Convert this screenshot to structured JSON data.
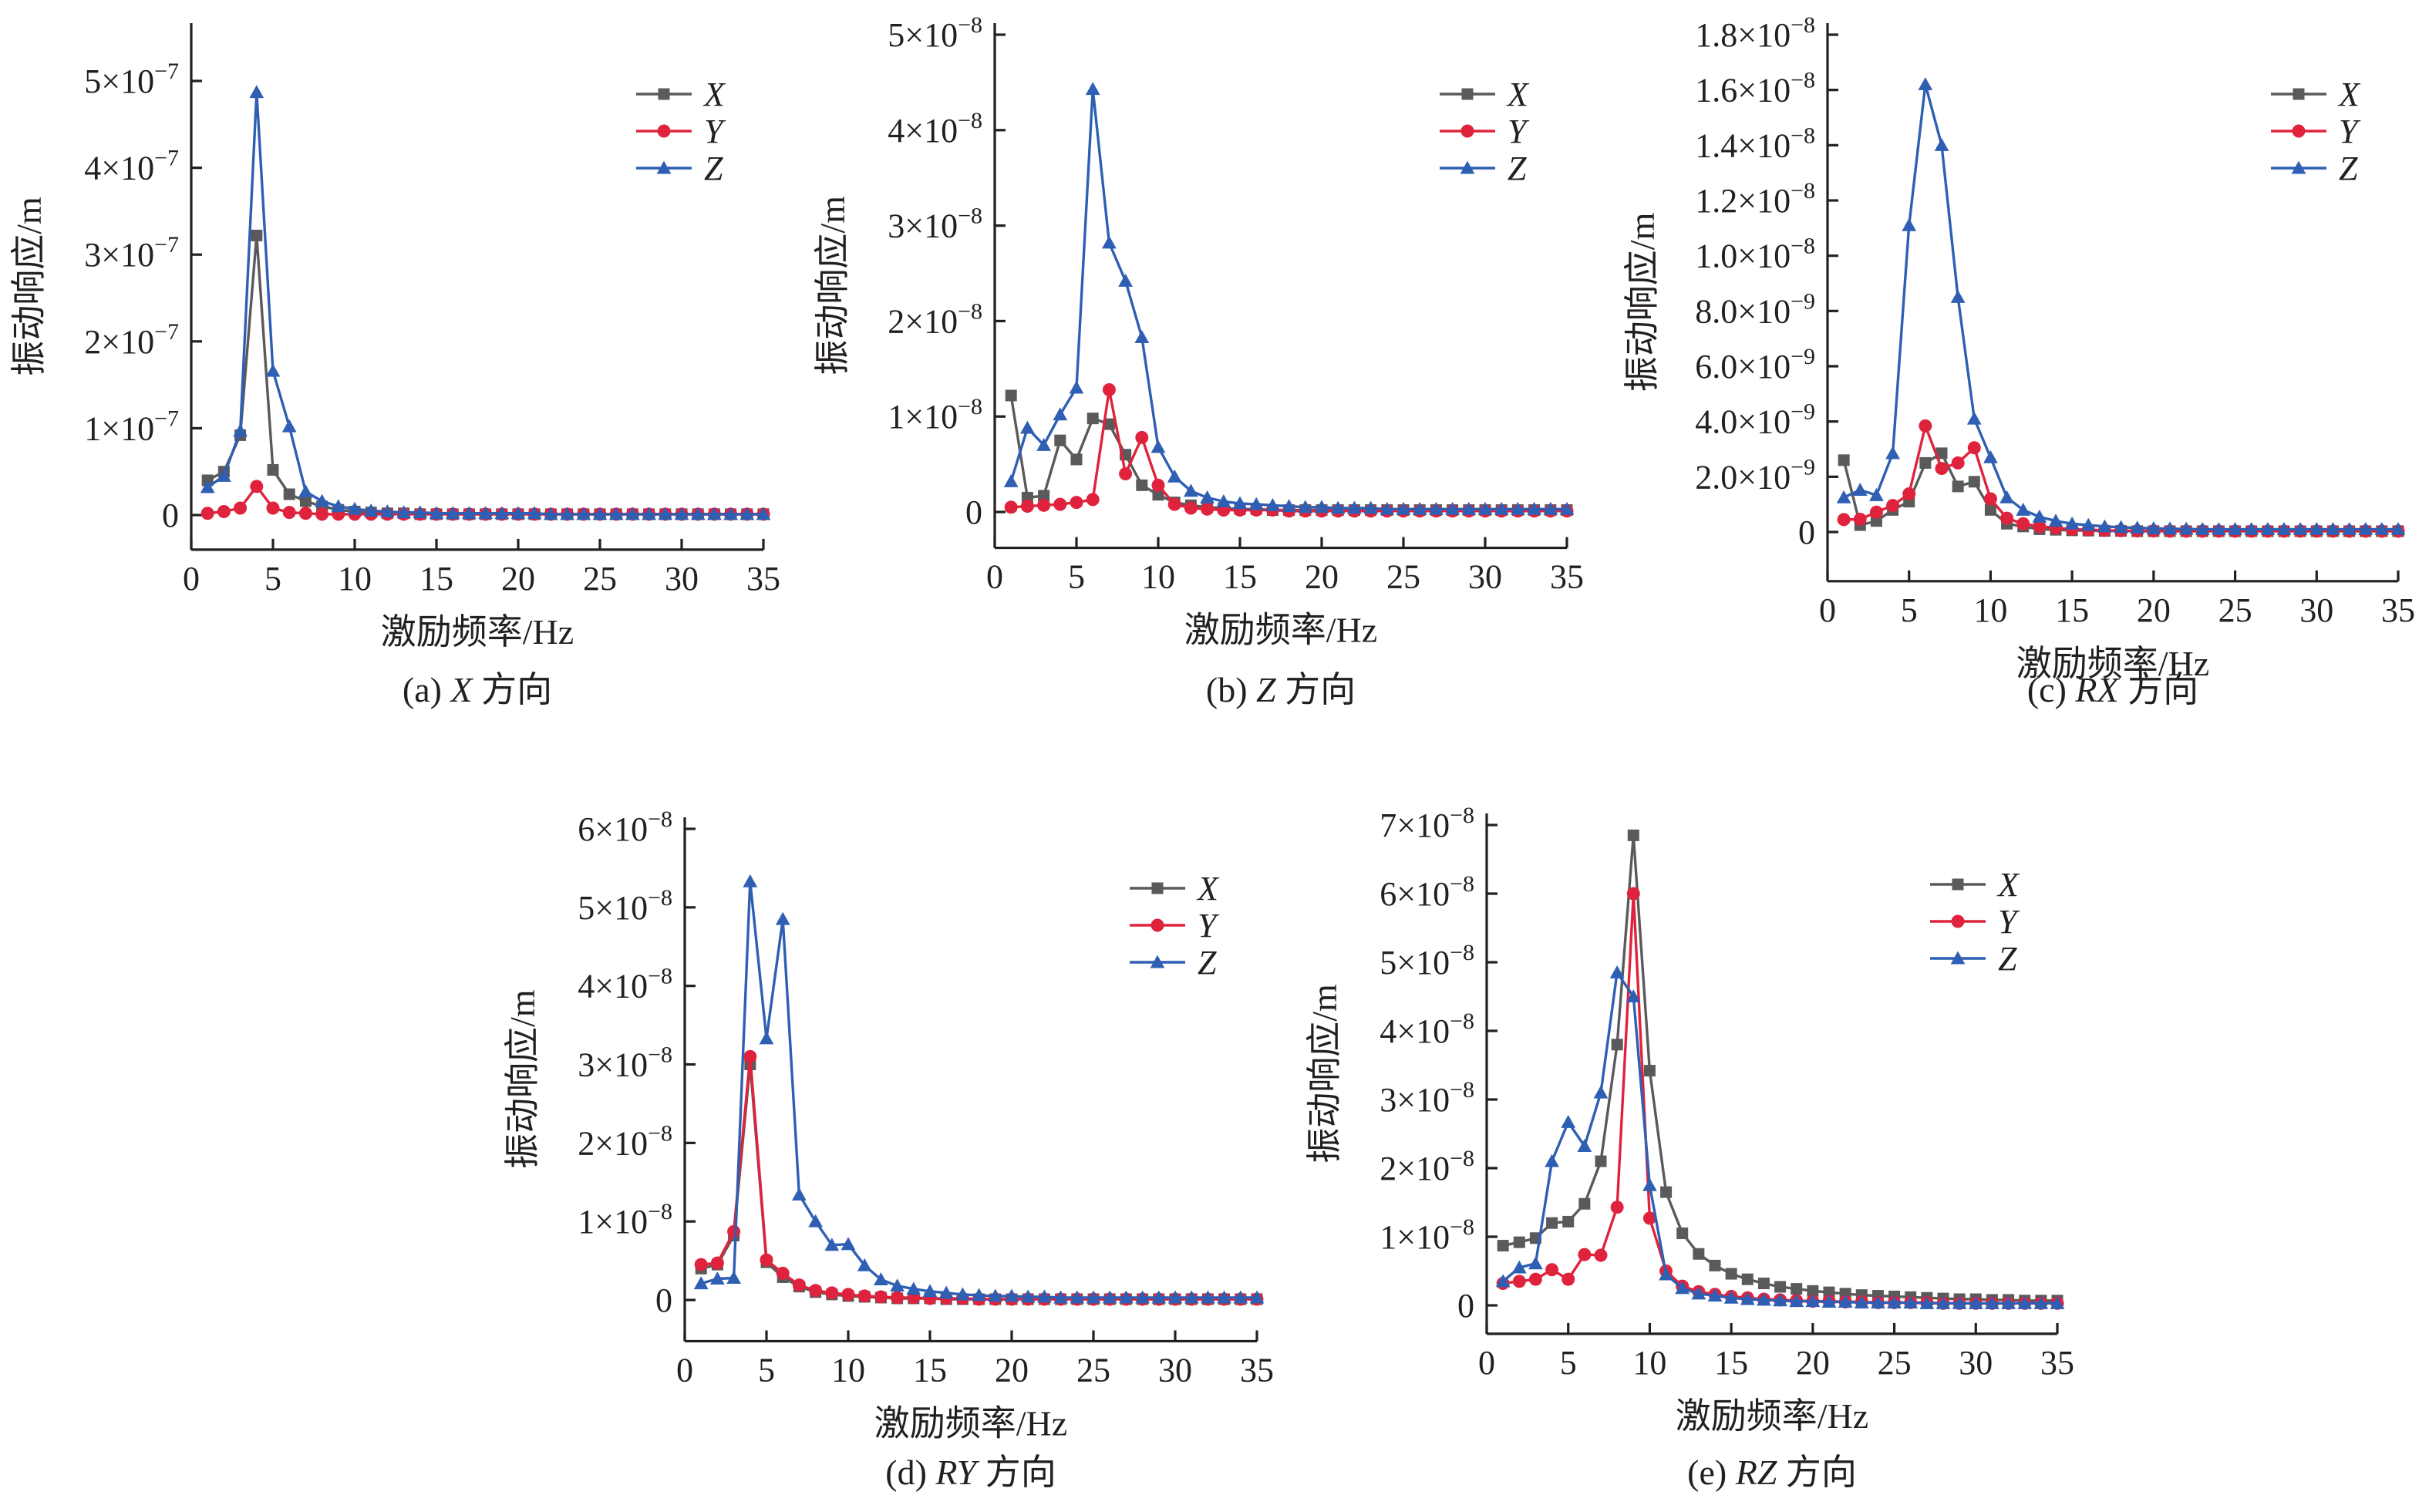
{
  "colors": {
    "X": "#5a5a5a",
    "Y": "#e0233d",
    "Z": "#2e5fb3"
  },
  "panels": [
    {
      "caption_label": "(a)",
      "caption_axis": "X",
      "caption_suffix": "方向",
      "xlabel": "激励频率/Hz",
      "ylabel": "振动响应/m",
      "xticks": [
        "0",
        "5",
        "10",
        "15",
        "20",
        "25",
        "30",
        "35"
      ],
      "ytick_mantissas": [
        "",
        "1×10",
        "2×10",
        "3×10",
        "4×10",
        "5×10"
      ],
      "ytick_exps": [
        "",
        "−7",
        "−7",
        "−7",
        "−7",
        "−7"
      ],
      "ytick_zero": "0",
      "legend": [
        "X",
        "Y",
        "Z"
      ]
    },
    {
      "caption_label": "(b)",
      "caption_axis": "Z",
      "caption_suffix": "方向",
      "xlabel": "激励频率/Hz",
      "ylabel": "振动响应/m",
      "xticks": [
        "0",
        "5",
        "10",
        "15",
        "20",
        "25",
        "30",
        "35"
      ],
      "ytick_mantissas": [
        "",
        "1×10",
        "2×10",
        "3×10",
        "4×10",
        "5×10"
      ],
      "ytick_exps": [
        "",
        "−8",
        "−8",
        "−8",
        "−8",
        "−8"
      ],
      "ytick_zero": "0",
      "legend": [
        "X",
        "Y",
        "Z"
      ]
    },
    {
      "caption_label": "(c)",
      "caption_axis": "RX",
      "caption_suffix": "方向",
      "xlabel": "激励频率/Hz",
      "ylabel": "振动响应/m",
      "xticks": [
        "0",
        "5",
        "10",
        "15",
        "20",
        "25",
        "30",
        "35"
      ],
      "ytick_mantissas": [
        "",
        "2.0×10",
        "4.0×10",
        "6.0×10",
        "8.0×10",
        "1.0×10",
        "1.2×10",
        "1.4×10",
        "1.6×10",
        "1.8×10"
      ],
      "ytick_exps": [
        "",
        "−9",
        "−9",
        "−9",
        "−9",
        "−8",
        "−8",
        "−8",
        "−8",
        "−8"
      ],
      "ytick_zero": "0",
      "legend": [
        "X",
        "Y",
        "Z"
      ]
    },
    {
      "caption_label": "(d)",
      "caption_axis": "RY",
      "caption_suffix": "方向",
      "xlabel": "激励频率/Hz",
      "ylabel": "振动响应/m",
      "xticks": [
        "0",
        "5",
        "10",
        "15",
        "20",
        "25",
        "30",
        "35"
      ],
      "ytick_mantissas": [
        "",
        "1×10",
        "2×10",
        "3×10",
        "4×10",
        "5×10",
        "6×10"
      ],
      "ytick_exps": [
        "",
        "−8",
        "−8",
        "−8",
        "−8",
        "−8",
        "−8"
      ],
      "ytick_zero": "0",
      "legend": [
        "X",
        "Y",
        "Z"
      ]
    },
    {
      "caption_label": "(e)",
      "caption_axis": "RZ",
      "caption_suffix": "方向",
      "xlabel": "激励频率/Hz",
      "ylabel": "振动响应/m",
      "xticks": [
        "0",
        "5",
        "10",
        "15",
        "20",
        "25",
        "30",
        "35"
      ],
      "ytick_mantissas": [
        "",
        "1×10",
        "2×10",
        "3×10",
        "4×10",
        "5×10",
        "6×10",
        "7×10"
      ],
      "ytick_exps": [
        "",
        "−8",
        "−8",
        "−8",
        "−8",
        "−8",
        "−8",
        "−8"
      ],
      "ytick_zero": "0",
      "legend": [
        "X",
        "Y",
        "Z"
      ]
    }
  ],
  "chart_data": [
    {
      "type": "line",
      "title": "(a) X 方向",
      "xlabel": "激励频率/Hz",
      "ylabel": "振动响应/m",
      "xlim": [
        0,
        35
      ],
      "ylim": [
        -1.5e-08,
        5.3e-07
      ],
      "yticks": [
        0,
        1e-07,
        2e-07,
        3e-07,
        4e-07,
        5e-07
      ],
      "legend_position": "top-right",
      "x": [
        1,
        2,
        3,
        4,
        5,
        6,
        7,
        8,
        9,
        10,
        11,
        12,
        13,
        14,
        15,
        16,
        17,
        18,
        19,
        20,
        21,
        22,
        23,
        24,
        25,
        26,
        27,
        28,
        29,
        30,
        31,
        32,
        33,
        34,
        35
      ],
      "series": [
        {
          "name": "X",
          "marker": "square",
          "values": [
            4e-08,
            5e-08,
            9.2e-08,
            3.22e-07,
            5.2e-08,
            2.4e-08,
            1.6e-08,
            1e-08,
            6e-09,
            4e-09,
            3e-09,
            2e-09,
            2e-09,
            1e-09,
            1e-09,
            1e-09,
            1e-09,
            1e-09,
            1e-09,
            1e-09,
            1e-09,
            1e-09,
            1e-09,
            1e-09,
            1e-09,
            1e-09,
            1e-09,
            1e-09,
            1e-09,
            1e-09,
            1e-09,
            1e-09,
            1e-09,
            1e-09,
            1e-09
          ]
        },
        {
          "name": "Y",
          "marker": "circle",
          "values": [
            2e-09,
            4e-09,
            8e-09,
            3.3e-08,
            8e-09,
            3e-09,
            2e-09,
            1e-09,
            1e-09,
            1e-09,
            1e-09,
            1e-09,
            1e-09,
            1e-09,
            1e-09,
            1e-09,
            1e-09,
            1e-09,
            1e-09,
            1e-09,
            1e-09,
            1e-09,
            1e-09,
            1e-09,
            1e-09,
            1e-09,
            1e-09,
            1e-09,
            1e-09,
            1e-09,
            1e-09,
            1e-09,
            1e-09,
            1e-09,
            1e-09
          ]
        },
        {
          "name": "Z",
          "marker": "triangle",
          "values": [
            3.2e-08,
            4.5e-08,
            9.7e-08,
            4.87e-07,
            1.66e-07,
            1.02e-07,
            2.7e-08,
            1.6e-08,
            1e-08,
            7e-09,
            5e-09,
            4e-09,
            3e-09,
            3e-09,
            2e-09,
            2e-09,
            2e-09,
            2e-09,
            2e-09,
            2e-09,
            2e-09,
            1e-09,
            1e-09,
            1e-09,
            1e-09,
            1e-09,
            1e-09,
            1e-09,
            1e-09,
            1e-09,
            1e-09,
            1e-09,
            1e-09,
            1e-09,
            1e-09
          ]
        }
      ]
    },
    {
      "type": "line",
      "title": "(b) Z 方向",
      "xlabel": "激励频率/Hz",
      "ylabel": "振动响应/m",
      "xlim": [
        0,
        35
      ],
      "ylim": [
        -1.5e-09,
        5e-08
      ],
      "yticks": [
        0,
        1e-08,
        2e-08,
        3e-08,
        4e-08,
        5e-08
      ],
      "legend_position": "top-right",
      "x": [
        1,
        2,
        3,
        4,
        5,
        6,
        7,
        8,
        9,
        10,
        11,
        12,
        13,
        14,
        15,
        16,
        17,
        18,
        19,
        20,
        21,
        22,
        23,
        24,
        25,
        26,
        27,
        28,
        29,
        30,
        31,
        32,
        33,
        34,
        35
      ],
      "series": [
        {
          "name": "X",
          "marker": "square",
          "values": [
            1.22e-08,
            1.5e-09,
            1.7e-09,
            7.5e-09,
            5.5e-09,
            9.8e-09,
            9.2e-09,
            6e-09,
            2.8e-09,
            1.8e-09,
            1e-09,
            7e-10,
            5e-10,
            4e-10,
            3e-10,
            3e-10,
            2e-10,
            2e-10,
            2e-10,
            2e-10,
            2e-10,
            2e-10,
            2e-10,
            2e-10,
            2e-10,
            2e-10,
            2e-10,
            2e-10,
            2e-10,
            2e-10,
            2e-10,
            2e-10,
            2e-10,
            2e-10,
            2e-10
          ]
        },
        {
          "name": "Y",
          "marker": "circle",
          "values": [
            5e-10,
            6e-10,
            7e-10,
            8e-10,
            1e-09,
            1.3e-09,
            1.28e-08,
            4e-09,
            7.8e-09,
            2.8e-09,
            8e-10,
            4e-10,
            3e-10,
            2e-10,
            2e-10,
            2e-10,
            2e-10,
            1e-10,
            1e-10,
            1e-10,
            1e-10,
            1e-10,
            1e-10,
            1e-10,
            1e-10,
            1e-10,
            1e-10,
            1e-10,
            1e-10,
            1e-10,
            1e-10,
            1e-10,
            1e-10,
            1e-10,
            1e-10
          ]
        },
        {
          "name": "Z",
          "marker": "triangle",
          "values": [
            3.2e-09,
            8.8e-09,
            7e-09,
            1.02e-08,
            1.3e-08,
            4.43e-08,
            2.82e-08,
            2.42e-08,
            1.83e-08,
            6.8e-09,
            3.7e-09,
            2.2e-09,
            1.5e-09,
            1.1e-09,
            9e-10,
            8e-10,
            7e-10,
            6e-10,
            5e-10,
            5e-10,
            4e-10,
            4e-10,
            4e-10,
            3e-10,
            3e-10,
            3e-10,
            3e-10,
            3e-10,
            3e-10,
            3e-10,
            3e-10,
            3e-10,
            3e-10,
            3e-10,
            3e-10
          ]
        }
      ]
    },
    {
      "type": "line",
      "title": "(c) RX 方向",
      "xlabel": "激励频率/Hz",
      "ylabel": "振动响应/m",
      "xlim": [
        0,
        35
      ],
      "ylim": [
        -1e-09,
        1.8e-08
      ],
      "yticks": [
        0,
        2e-09,
        4e-09,
        6e-09,
        8e-09,
        1e-08,
        1.2e-08,
        1.4e-08,
        1.6e-08,
        1.8e-08
      ],
      "legend_position": "top-right",
      "x": [
        1,
        2,
        3,
        4,
        5,
        6,
        7,
        8,
        9,
        10,
        11,
        12,
        13,
        14,
        15,
        16,
        17,
        18,
        19,
        20,
        21,
        22,
        23,
        24,
        25,
        26,
        27,
        28,
        29,
        30,
        31,
        32,
        33,
        34,
        35
      ],
      "series": [
        {
          "name": "X",
          "marker": "square",
          "values": [
            2.6e-09,
            2.5e-10,
            4e-10,
            8e-10,
            1.1e-09,
            2.5e-09,
            2.85e-09,
            1.65e-09,
            1.82e-09,
            8e-10,
            3e-10,
            2e-10,
            1e-10,
            8e-11,
            6e-11,
            5e-11,
            4e-11,
            4e-11,
            3e-11,
            3e-11,
            3e-11,
            3e-11,
            3e-11,
            3e-11,
            3e-11,
            3e-11,
            3e-11,
            3e-11,
            3e-11,
            3e-11,
            3e-11,
            3e-11,
            3e-11,
            3e-11,
            3e-11
          ]
        },
        {
          "name": "Y",
          "marker": "circle",
          "values": [
            4.5e-10,
            4.6e-10,
            7.2e-10,
            9.6e-10,
            1.38e-09,
            3.84e-09,
            2.3e-09,
            2.5e-09,
            3.05e-09,
            1.2e-09,
            5e-10,
            3e-10,
            2e-10,
            1.5e-10,
            1e-10,
            8e-11,
            6e-11,
            5e-11,
            4e-11,
            4e-11,
            3e-11,
            3e-11,
            3e-11,
            3e-11,
            3e-11,
            3e-11,
            3e-11,
            3e-11,
            3e-11,
            3e-11,
            3e-11,
            3e-11,
            3e-11,
            3e-11,
            3e-11
          ]
        },
        {
          "name": "Z",
          "marker": "triangle",
          "values": [
            1.25e-09,
            1.52e-09,
            1.33e-09,
            2.85e-09,
            1.11e-08,
            1.62e-08,
            1.4e-08,
            8.5e-09,
            4.1e-09,
            2.7e-09,
            1.25e-09,
            8e-10,
            5.5e-10,
            4e-10,
            3e-10,
            2.5e-10,
            2e-10,
            1.7e-10,
            1.5e-10,
            1.3e-10,
            1.2e-10,
            1.1e-10,
            1e-10,
            1e-10,
            1e-10,
            1e-10,
            1e-10,
            1e-10,
            1e-10,
            1e-10,
            1e-10,
            1e-10,
            1e-10,
            1e-10,
            1e-10
          ]
        }
      ]
    },
    {
      "type": "line",
      "title": "(d) RY 方向",
      "xlabel": "激励频率/Hz",
      "ylabel": "振动响应/m",
      "xlim": [
        0,
        35
      ],
      "ylim": [
        -2.5e-09,
        6e-08
      ],
      "yticks": [
        0,
        1e-08,
        2e-08,
        3e-08,
        4e-08,
        5e-08,
        6e-08
      ],
      "legend_position": "top-right",
      "x": [
        1,
        2,
        3,
        4,
        5,
        6,
        7,
        8,
        9,
        10,
        11,
        12,
        13,
        14,
        15,
        16,
        17,
        18,
        19,
        20,
        21,
        22,
        23,
        24,
        25,
        26,
        27,
        28,
        29,
        30,
        31,
        32,
        33,
        34,
        35
      ],
      "series": [
        {
          "name": "X",
          "marker": "square",
          "values": [
            4e-09,
            4.5e-09,
            8.2e-09,
            3e-08,
            4.8e-09,
            2.9e-09,
            1.7e-09,
            1e-09,
            7e-10,
            5e-10,
            4e-10,
            3e-10,
            2e-10,
            2e-10,
            2e-10,
            1e-10,
            1e-10,
            1e-10,
            1e-10,
            1e-10,
            1e-10,
            1e-10,
            1e-10,
            1e-10,
            1e-10,
            1e-10,
            1e-10,
            1e-10,
            1e-10,
            1e-10,
            1e-10,
            1e-10,
            1e-10,
            1e-10,
            1e-10
          ]
        },
        {
          "name": "Y",
          "marker": "circle",
          "values": [
            4.5e-09,
            4.7e-09,
            8.7e-09,
            3.1e-08,
            5.1e-09,
            3.4e-09,
            1.9e-09,
            1.2e-09,
            9e-10,
            7e-10,
            5e-10,
            4e-10,
            3e-10,
            3e-10,
            2e-10,
            2e-10,
            2e-10,
            1e-10,
            1e-10,
            1e-10,
            1e-10,
            1e-10,
            1e-10,
            1e-10,
            1e-10,
            1e-10,
            1e-10,
            1e-10,
            1e-10,
            1e-10,
            1e-10,
            1e-10,
            1e-10,
            1e-10,
            1e-10
          ]
        },
        {
          "name": "Z",
          "marker": "triangle",
          "values": [
            2.1e-09,
            2.7e-09,
            2.8e-09,
            5.33e-08,
            3.33e-08,
            4.85e-08,
            1.34e-08,
            1e-08,
            7e-09,
            7.1e-09,
            4.4e-09,
            2.6e-09,
            1.8e-09,
            1.4e-09,
            1.1e-09,
            9e-10,
            7e-10,
            6e-10,
            5e-10,
            5e-10,
            4e-10,
            4e-10,
            3e-10,
            3e-10,
            3e-10,
            3e-10,
            3e-10,
            3e-10,
            3e-10,
            3e-10,
            3e-10,
            3e-10,
            3e-10,
            3e-10,
            3e-10
          ]
        }
      ]
    },
    {
      "type": "line",
      "title": "(e) RZ 方向",
      "xlabel": "激励频率/Hz",
      "ylabel": "振动响应/m",
      "xlim": [
        0,
        35
      ],
      "ylim": [
        -1e-09,
        7e-08
      ],
      "yticks": [
        0,
        1e-08,
        2e-08,
        3e-08,
        4e-08,
        5e-08,
        6e-08,
        7e-08
      ],
      "legend_position": "top-right",
      "x": [
        1,
        2,
        3,
        4,
        5,
        6,
        7,
        8,
        9,
        10,
        11,
        12,
        13,
        14,
        15,
        16,
        17,
        18,
        19,
        20,
        21,
        22,
        23,
        24,
        25,
        26,
        27,
        28,
        29,
        30,
        31,
        32,
        33,
        34,
        35
      ],
      "series": [
        {
          "name": "X",
          "marker": "square",
          "values": [
            8.7e-09,
            9.2e-09,
            9.8e-09,
            1.2e-08,
            1.22e-08,
            1.48e-08,
            2.1e-08,
            3.8e-08,
            6.85e-08,
            3.42e-08,
            1.65e-08,
            1.05e-08,
            7.5e-09,
            5.8e-09,
            4.6e-09,
            3.8e-09,
            3.2e-09,
            2.7e-09,
            2.4e-09,
            2.1e-09,
            1.9e-09,
            1.7e-09,
            1.5e-09,
            1.4e-09,
            1.3e-09,
            1.2e-09,
            1.1e-09,
            1e-09,
            9e-10,
            9e-10,
            8e-10,
            8e-10,
            7e-10,
            7e-10,
            7e-10
          ]
        },
        {
          "name": "Y",
          "marker": "circle",
          "values": [
            3.2e-09,
            3.5e-09,
            3.8e-09,
            5.2e-09,
            3.8e-09,
            7.4e-09,
            7.3e-09,
            1.43e-08,
            6e-08,
            1.27e-08,
            5e-09,
            2.8e-09,
            2e-09,
            1.6e-09,
            1.3e-09,
            1.1e-09,
            9e-10,
            8e-10,
            7e-10,
            6e-10,
            6e-10,
            5e-10,
            5e-10,
            4e-10,
            4e-10,
            4e-10,
            4e-10,
            3e-10,
            3e-10,
            3e-10,
            3e-10,
            3e-10,
            3e-10,
            3e-10,
            3e-10
          ]
        },
        {
          "name": "Z",
          "marker": "triangle",
          "values": [
            3.5e-09,
            5.5e-09,
            6.1e-09,
            2.1e-08,
            2.67e-08,
            2.32e-08,
            3.1e-08,
            4.85e-08,
            4.5e-08,
            1.75e-08,
            4.5e-09,
            2.5e-09,
            1.7e-09,
            1.4e-09,
            1.1e-09,
            9e-10,
            8e-10,
            7e-10,
            6e-10,
            6e-10,
            5e-10,
            5e-10,
            4e-10,
            4e-10,
            4e-10,
            4e-10,
            3e-10,
            3e-10,
            3e-10,
            3e-10,
            3e-10,
            3e-10,
            3e-10,
            3e-10,
            3e-10
          ]
        }
      ]
    }
  ]
}
